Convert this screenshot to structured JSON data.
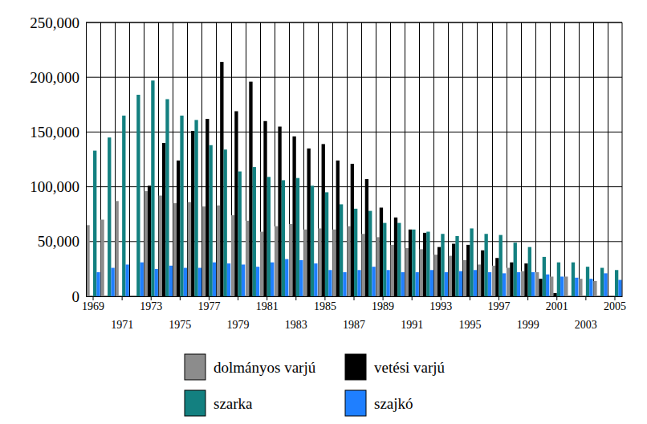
{
  "chart_data": {
    "type": "bar",
    "categories": [
      1969,
      null,
      1971,
      null,
      1973,
      null,
      1975,
      null,
      1977,
      null,
      1979,
      null,
      1981,
      null,
      1983,
      null,
      1985,
      null,
      1987,
      null,
      1989,
      null,
      1991,
      null,
      1993,
      null,
      1995,
      null,
      1997,
      null,
      1999,
      null,
      2001,
      null,
      2003,
      null,
      2005
    ],
    "series": [
      {
        "name": "dolmányos varjú",
        "color": "#8c8c8c",
        "values": [
          65000,
          70000,
          87000,
          null,
          96000,
          92000,
          85000,
          86000,
          82000,
          83000,
          74000,
          69000,
          59000,
          64000,
          66000,
          61000,
          62000,
          61000,
          64000,
          57000,
          54000,
          47000,
          44000,
          43000,
          38000,
          37000,
          33000,
          29000,
          28000,
          26000,
          23000,
          22000,
          18000,
          18000,
          16000,
          14000,
          null
        ]
      },
      {
        "name": "vetési varjú",
        "color": "#000000",
        "values": [
          null,
          null,
          null,
          null,
          101000,
          140000,
          124000,
          151000,
          162000,
          214000,
          169000,
          196000,
          160000,
          155000,
          146000,
          135000,
          139000,
          124000,
          121000,
          107000,
          81000,
          72000,
          61000,
          58000,
          45000,
          48000,
          47000,
          42000,
          35000,
          31000,
          30000,
          16000,
          3000,
          null,
          null,
          null,
          null
        ]
      },
      {
        "name": "szarka",
        "color": "#138080",
        "values": [
          133000,
          145000,
          165000,
          184000,
          197000,
          180000,
          165000,
          161000,
          138000,
          134000,
          114000,
          118000,
          109000,
          106000,
          108000,
          101000,
          95000,
          84000,
          80000,
          78000,
          67000,
          67000,
          61000,
          59000,
          57000,
          55000,
          62000,
          57000,
          56000,
          49000,
          45000,
          36000,
          31000,
          31000,
          27000,
          26000,
          24000
        ]
      },
      {
        "name": "szajkó",
        "color": "#1f7fff",
        "values": [
          22000,
          26000,
          29000,
          31000,
          25000,
          28000,
          26000,
          26000,
          31000,
          30000,
          29000,
          27000,
          31000,
          34000,
          33000,
          30000,
          24000,
          22000,
          24000,
          27000,
          24000,
          22000,
          22000,
          24000,
          22000,
          23000,
          24000,
          22000,
          21000,
          22000,
          22000,
          20000,
          18000,
          17000,
          16000,
          21000,
          15000
        ]
      }
    ],
    "ylim": [
      0,
      250000
    ],
    "yticks": [
      0,
      {
        "value": 50000,
        "label": "50,000"
      },
      {
        "value": 100000,
        "label": "100,000"
      },
      {
        "value": 150000,
        "label": "150,000"
      },
      {
        "value": 200000,
        "label": "200,000"
      },
      {
        "value": 250000,
        "label": "250,000"
      }
    ],
    "grid": true,
    "legend": "bottom"
  }
}
